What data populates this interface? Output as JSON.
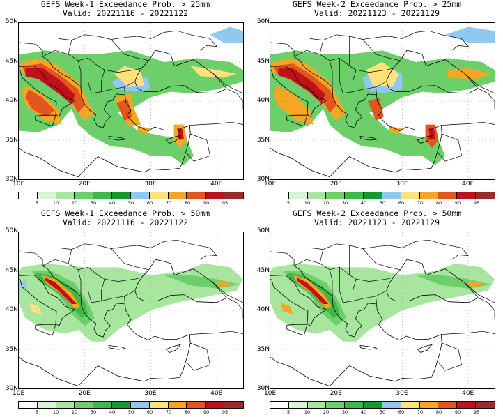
{
  "panels": [
    {
      "title_line1": "GEFS Week-1 Exceedance Prob. > 25mm",
      "title_line2": "Valid: 20221116 - 20221122",
      "threshold": 25
    },
    {
      "title_line1": "GEFS Week-2 Exceedance Prob. > 25mm",
      "title_line2": "Valid: 20221123 - 20221129",
      "threshold": 25
    },
    {
      "title_line1": "GEFS Week-1 Exceedance Prob. > 50mm",
      "title_line2": "Valid: 20221116 - 20221122",
      "threshold": 50
    },
    {
      "title_line1": "GEFS Week-2 Exceedance Prob. > 50mm",
      "title_line2": "Valid: 20221123 - 20221129",
      "threshold": 50
    }
  ],
  "lat_labels": [
    "50N",
    "45N",
    "40N",
    "35N",
    "30N"
  ],
  "lon_labels": [
    "10E",
    "20E",
    "30E",
    "40E"
  ],
  "colorbar": {
    "labels": [
      "5",
      "10",
      "20",
      "30",
      "40",
      "50",
      "60",
      "70",
      "80",
      "90",
      "95"
    ],
    "colors": [
      "#ffffff",
      "#d8f5d8",
      "#a8e6a0",
      "#6ccf6a",
      "#3db94a",
      "#0f9b2e",
      "#8fc8f0",
      "#ffe37a",
      "#f5a623",
      "#e4541d",
      "#c0101a",
      "#9b2a2a"
    ]
  }
}
